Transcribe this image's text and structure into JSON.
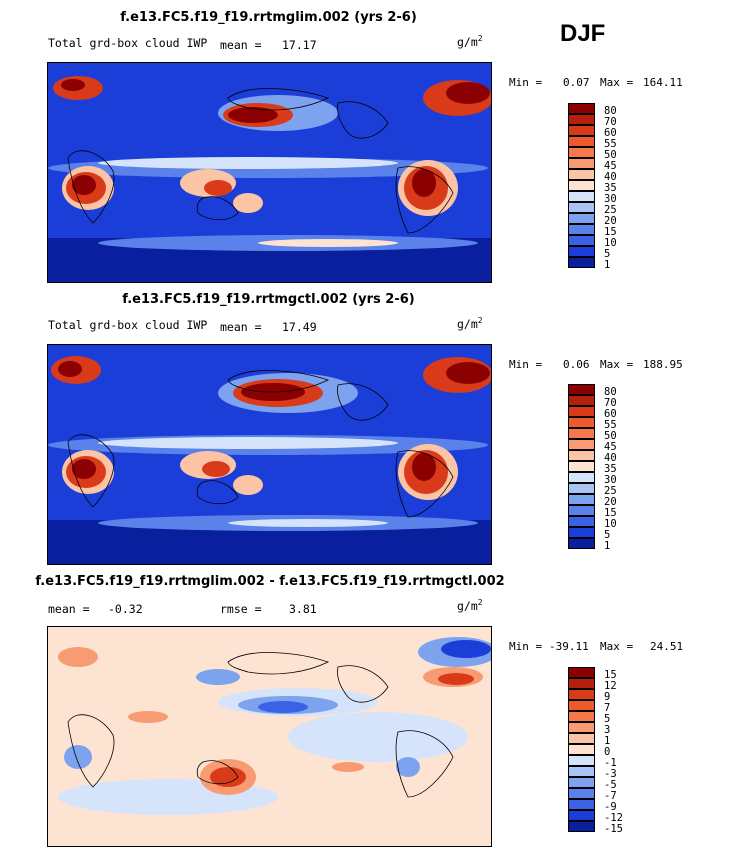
{
  "season": "DJF",
  "panels": [
    {
      "title": "f.e13.FC5.f19_f19.rrtmglim.002 (yrs 2-6)",
      "field": "Total grd-box cloud IWP",
      "stat1_label": "mean =",
      "stat1_value": "17.17",
      "units_base": "g/m",
      "units_exp": "2",
      "min_label": "Min =",
      "min_value": "0.07",
      "max_label": "Max =",
      "max_value": "164.11",
      "colorbar": {
        "levels": [
          "80",
          "70",
          "60",
          "55",
          "50",
          "45",
          "40",
          "35",
          "30",
          "25",
          "20",
          "15",
          "10",
          "5",
          "1"
        ],
        "colors": [
          "#8b0000",
          "#b5200d",
          "#d93a1a",
          "#ee5a2e",
          "#f5794c",
          "#f89b73",
          "#fbc4a4",
          "#fde4d2",
          "#d6e4fb",
          "#a9c4f4",
          "#7ea3ee",
          "#5a82ea",
          "#3b62e4",
          "#1c3ed8",
          "#0a1f9e"
        ]
      }
    },
    {
      "title": "f.e13.FC5.f19_f19.rrtmgctl.002 (yrs 2-6)",
      "field": "Total grd-box cloud IWP",
      "stat1_label": "mean =",
      "stat1_value": "17.49",
      "units_base": "g/m",
      "units_exp": "2",
      "min_label": "Min =",
      "min_value": "0.06",
      "max_label": "Max =",
      "max_value": "188.95",
      "colorbar": {
        "levels": [
          "80",
          "70",
          "60",
          "55",
          "50",
          "45",
          "40",
          "35",
          "30",
          "25",
          "20",
          "15",
          "10",
          "5",
          "1"
        ],
        "colors": [
          "#8b0000",
          "#b5200d",
          "#d93a1a",
          "#ee5a2e",
          "#f5794c",
          "#f89b73",
          "#fbc4a4",
          "#fde4d2",
          "#d6e4fb",
          "#a9c4f4",
          "#7ea3ee",
          "#5a82ea",
          "#3b62e4",
          "#1c3ed8",
          "#0a1f9e"
        ]
      }
    },
    {
      "title": "f.e13.FC5.f19_f19.rrtmglim.002 - f.e13.FC5.f19_f19.rrtmgctl.002",
      "stat1_label": "mean =",
      "stat1_value": "-0.32",
      "stat2_label": "rmse =",
      "stat2_value": "3.81",
      "units_base": "g/m",
      "units_exp": "2",
      "min_label": "Min =",
      "min_value": "-39.11",
      "max_label": "Max =",
      "max_value": "24.51",
      "colorbar": {
        "levels": [
          "15",
          "12",
          "9",
          "7",
          "5",
          "3",
          "1",
          "0",
          "-1",
          "-3",
          "-5",
          "-7",
          "-9",
          "-12",
          "-15"
        ],
        "colors": [
          "#8b0000",
          "#b5200d",
          "#d93a1a",
          "#ee5a2e",
          "#f5794c",
          "#f89b73",
          "#fbc4a4",
          "#fde4d2",
          "#d6e4fb",
          "#a9c4f4",
          "#7ea3ee",
          "#5a82ea",
          "#3b62e4",
          "#1c3ed8",
          "#0a1f9e"
        ]
      }
    }
  ]
}
